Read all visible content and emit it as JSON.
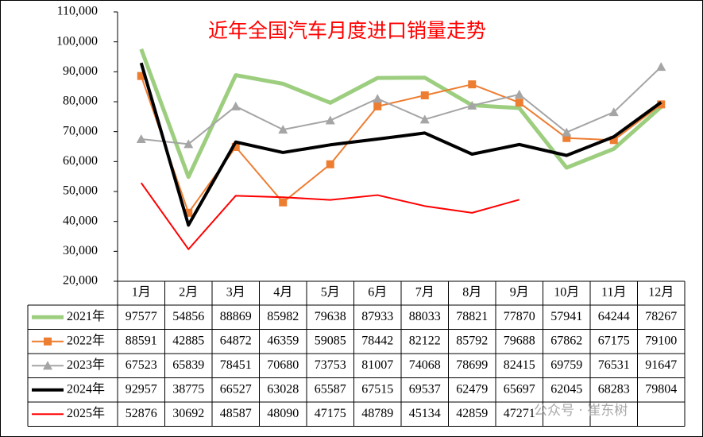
{
  "chart_data": {
    "type": "line",
    "title": "近年全国汽车月度进口销量走势",
    "categories": [
      "1月",
      "2月",
      "3月",
      "4月",
      "5月",
      "6月",
      "7月",
      "8月",
      "9月",
      "10月",
      "11月",
      "12月"
    ],
    "series": [
      {
        "name": "2021年",
        "color": "#9DCE7F",
        "width": 5,
        "marker": "none",
        "values": [
          97577,
          54856,
          88869,
          85982,
          79638,
          87933,
          88033,
          78821,
          77870,
          57941,
          64244,
          78267
        ]
      },
      {
        "name": "2022年",
        "color": "#ED7D31",
        "width": 2,
        "marker": "square",
        "values": [
          88591,
          42885,
          64872,
          46359,
          59085,
          78442,
          82122,
          85792,
          79688,
          67862,
          67175,
          79100
        ]
      },
      {
        "name": "2023年",
        "color": "#A5A5A5",
        "width": 2,
        "marker": "triangle",
        "values": [
          67523,
          65839,
          78451,
          70680,
          73753,
          81007,
          74068,
          78699,
          82415,
          69759,
          76531,
          91647
        ]
      },
      {
        "name": "2024年",
        "color": "#000000",
        "width": 4,
        "marker": "none",
        "values": [
          92957,
          38775,
          66527,
          63028,
          65587,
          67515,
          69537,
          62479,
          65697,
          62045,
          68283,
          79804
        ]
      },
      {
        "name": "2025年",
        "color": "#FF0000",
        "width": 2,
        "marker": "none",
        "values": [
          52876,
          30692,
          48587,
          48090,
          47175,
          48789,
          45134,
          42859,
          47271,
          null,
          null,
          null
        ]
      }
    ],
    "ylim": [
      20000,
      110000
    ],
    "yticks": [
      {
        "value": 20000,
        "label": "20,000"
      },
      {
        "value": 30000,
        "label": "30,000"
      },
      {
        "value": 40000,
        "label": "40,000"
      },
      {
        "value": 50000,
        "label": "50,000"
      },
      {
        "value": 60000,
        "label": "60,000"
      },
      {
        "value": 70000,
        "label": "70,000"
      },
      {
        "value": 80000,
        "label": "80,000"
      },
      {
        "value": 90000,
        "label": "90,000"
      },
      {
        "value": 100000,
        "label": "100,000"
      },
      {
        "value": 110000,
        "label": "110,000"
      }
    ],
    "grid": false,
    "watermark": "公众号 · 崔东树"
  }
}
